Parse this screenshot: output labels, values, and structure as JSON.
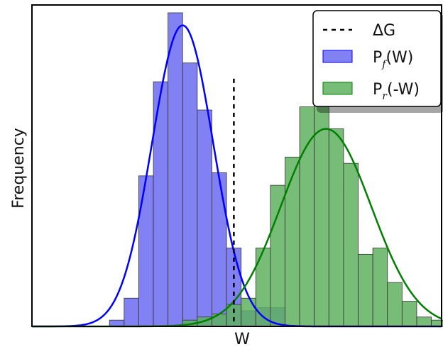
{
  "chart_data": {
    "type": "bar",
    "title": "",
    "xlabel": "W",
    "ylabel": "Frequency",
    "x_ticks": false,
    "y_ticks": false,
    "grid": false,
    "legend_placement": "top-right",
    "x_range": [
      -6.9,
      7.1
    ],
    "y_range": [
      0,
      1
    ],
    "delta_G": {
      "x": 0.0,
      "y_top": 0.79,
      "label": "ΔG",
      "color": "#000000"
    },
    "series": [
      {
        "name": "P_f(W)",
        "label_main": "P",
        "label_sub": "f",
        "label_tail": "(W)",
        "kind": "histogram",
        "color": "#0000ff",
        "fill": "#6b6bf2",
        "bin_width": 0.5,
        "bins": [
          {
            "x": -4.0,
            "y": 0.02
          },
          {
            "x": -3.5,
            "y": 0.09
          },
          {
            "x": -3.0,
            "y": 0.48
          },
          {
            "x": -2.5,
            "y": 0.78
          },
          {
            "x": -2.0,
            "y": 1.0
          },
          {
            "x": -1.5,
            "y": 0.84
          },
          {
            "x": -1.0,
            "y": 0.69
          },
          {
            "x": -0.5,
            "y": 0.49
          },
          {
            "x": 0.0,
            "y": 0.25
          },
          {
            "x": 0.5,
            "y": 0.05
          },
          {
            "x": 1.0,
            "y": 0.06
          },
          {
            "x": 1.5,
            "y": 0.06
          }
        ],
        "curve": {
          "mu": -1.75,
          "sigma": 1.05,
          "peak": 0.96
        }
      },
      {
        "name": "P_r(-W)",
        "label_main": "P",
        "label_sub": "r",
        "label_tail": "(-W)",
        "kind": "histogram",
        "color": "#007f00",
        "fill": "#5fb15f",
        "bin_width": 0.5,
        "bins": [
          {
            "x": -1.5,
            "y": 0.02
          },
          {
            "x": -1.0,
            "y": 0.03
          },
          {
            "x": -0.5,
            "y": 0.04
          },
          {
            "x": 0.0,
            "y": 0.07
          },
          {
            "x": 0.5,
            "y": 0.09
          },
          {
            "x": 1.0,
            "y": 0.25
          },
          {
            "x": 1.5,
            "y": 0.45
          },
          {
            "x": 2.0,
            "y": 0.54
          },
          {
            "x": 2.5,
            "y": 0.7
          },
          {
            "x": 3.0,
            "y": 0.9
          },
          {
            "x": 3.5,
            "y": 0.63
          },
          {
            "x": 4.0,
            "y": 0.52
          },
          {
            "x": 4.5,
            "y": 0.23
          },
          {
            "x": 5.0,
            "y": 0.25
          },
          {
            "x": 5.5,
            "y": 0.14
          },
          {
            "x": 6.0,
            "y": 0.08
          },
          {
            "x": 6.5,
            "y": 0.03
          },
          {
            "x": 7.0,
            "y": 0.02
          }
        ],
        "curve": {
          "mu": 3.15,
          "sigma": 1.55,
          "peak": 0.63
        }
      }
    ]
  }
}
